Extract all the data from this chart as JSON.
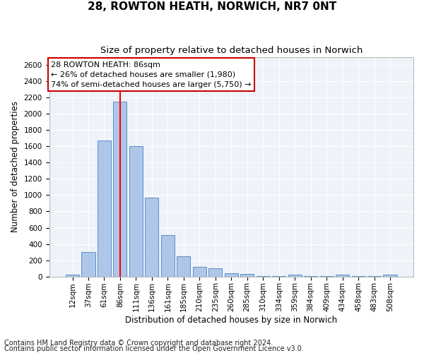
{
  "title": "28, ROWTON HEATH, NORWICH, NR7 0NT",
  "subtitle": "Size of property relative to detached houses in Norwich",
  "xlabel": "Distribution of detached houses by size in Norwich",
  "ylabel": "Number of detached properties",
  "categories": [
    "12sqm",
    "37sqm",
    "61sqm",
    "86sqm",
    "111sqm",
    "136sqm",
    "161sqm",
    "185sqm",
    "210sqm",
    "235sqm",
    "260sqm",
    "285sqm",
    "310sqm",
    "334sqm",
    "359sqm",
    "384sqm",
    "409sqm",
    "434sqm",
    "458sqm",
    "483sqm",
    "508sqm"
  ],
  "values": [
    20,
    300,
    1670,
    2150,
    1600,
    970,
    510,
    245,
    120,
    100,
    40,
    35,
    10,
    5,
    20,
    5,
    5,
    20,
    5,
    5,
    20
  ],
  "bar_color": "#aec6e8",
  "bar_edge_color": "#5b8fc9",
  "red_line_index": 3,
  "annotation_text": "28 ROWTON HEATH: 86sqm\n← 26% of detached houses are smaller (1,980)\n74% of semi-detached houses are larger (5,750) →",
  "annotation_box_facecolor": "#ffffff",
  "annotation_box_edgecolor": "#cc0000",
  "footnote1": "Contains HM Land Registry data © Crown copyright and database right 2024.",
  "footnote2": "Contains public sector information licensed under the Open Government Licence v3.0.",
  "background_color": "#eef2f9",
  "ylim": [
    0,
    2700
  ],
  "yticks": [
    0,
    200,
    400,
    600,
    800,
    1000,
    1200,
    1400,
    1600,
    1800,
    2000,
    2200,
    2400,
    2600
  ],
  "title_fontsize": 11,
  "subtitle_fontsize": 9.5,
  "axis_label_fontsize": 8.5,
  "tick_fontsize": 7.5,
  "annotation_fontsize": 8,
  "footnote_fontsize": 7
}
